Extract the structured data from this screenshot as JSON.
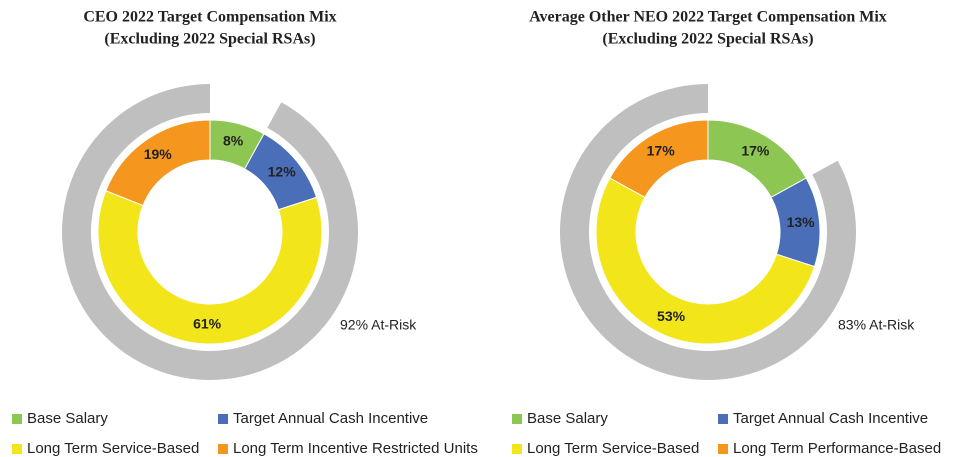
{
  "chart_data": [
    {
      "type": "pie",
      "title": [
        "CEO 2022 Target Compensation Mix",
        "(Excluding 2022 Special RSAs)"
      ],
      "categories": [
        "Base Salary",
        "Target Annual Cash Incentive",
        "Long Term Service-Based",
        "Long Term Incentive Restricted Units"
      ],
      "values": [
        8,
        12,
        61,
        19
      ],
      "value_labels": [
        "8%",
        "12%",
        "61%",
        "19%"
      ],
      "colors": [
        "#8dc653",
        "#4a6fb8",
        "#f2e61a",
        "#f5961e"
      ],
      "outer_ring": {
        "value": 92,
        "label": "92% At-Risk",
        "color": "#bfbfbf"
      }
    },
    {
      "type": "pie",
      "title": [
        "Average Other NEO 2022 Target Compensation Mix",
        "(Excluding 2022 Special RSAs)"
      ],
      "categories": [
        "Base Salary",
        "Target Annual Cash Incentive",
        "Long Term Service-Based",
        "Long Term Performance-Based"
      ],
      "values": [
        17,
        13,
        53,
        17
      ],
      "value_labels": [
        "17%",
        "13%",
        "53%",
        "17%"
      ],
      "colors": [
        "#8dc653",
        "#4a6fb8",
        "#f2e61a",
        "#f5961e"
      ],
      "outer_ring": {
        "value": 83,
        "label": "83% At-Risk",
        "color": "#bfbfbf"
      }
    }
  ]
}
